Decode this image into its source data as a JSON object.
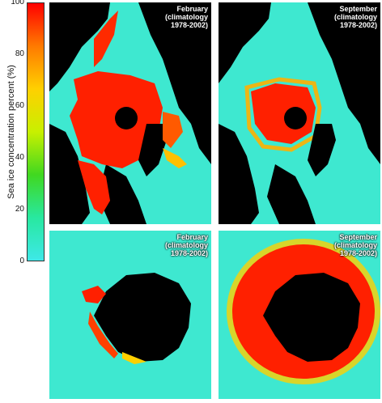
{
  "colorbar": {
    "label": "Sea ice concentration percent (%)",
    "ticks": [
      "100",
      "80",
      "60",
      "40",
      "20",
      "0"
    ],
    "colors": [
      "#ff0000",
      "#ff7a00",
      "#ffd000",
      "#c8f000",
      "#40d820",
      "#28e8a0",
      "#3ee8e8"
    ]
  },
  "panels": [
    {
      "line1": "February",
      "line2": "(climatology",
      "line3": "1978-2002)"
    },
    {
      "line1": "September",
      "line2": "(climatology",
      "line3": "1978-2002)"
    },
    {
      "line1": "February",
      "line2": "(climatology",
      "line3": "1978-2002)"
    },
    {
      "line1": "September",
      "line2": "(climatology",
      "line3": "1978-2002)"
    }
  ],
  "chart_data": {
    "type": "heatmap",
    "colorbar_range": [
      0,
      100
    ],
    "colorbar_ticks": [
      0,
      20,
      40,
      60,
      80,
      100
    ],
    "ylabel": "Sea ice concentration percent (%)",
    "panels": [
      "February (climatology 1978-2002)",
      "September (climatology 1978-2002)",
      "February (climatology 1978-2002)",
      "September (climatology 1978-2002)"
    ]
  }
}
